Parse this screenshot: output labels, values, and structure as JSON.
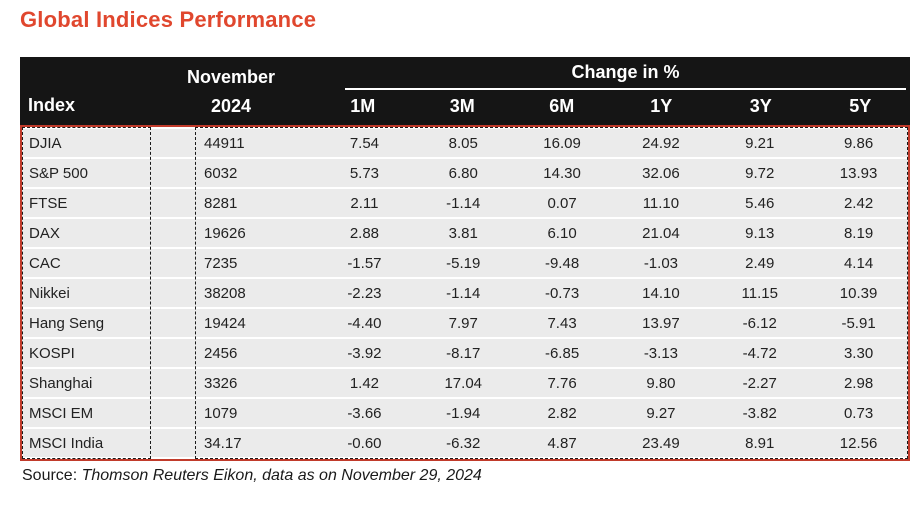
{
  "title": "Global Indices Performance",
  "header": {
    "index_label": "Index",
    "nov_label_line1": "November",
    "nov_label_line2": "2024",
    "group_label": "Change in %",
    "periods": [
      "1M",
      "3M",
      "6M",
      "1Y",
      "3Y",
      "5Y"
    ]
  },
  "chart_data": {
    "type": "table",
    "title": "Global Indices Performance",
    "columns": [
      "Index",
      "November 2024",
      "1M",
      "3M",
      "6M",
      "1Y",
      "3Y",
      "5Y"
    ],
    "group_header": "Change in %",
    "rows": [
      {
        "index": "DJIA",
        "november_2024": "44911",
        "changes": [
          "7.54",
          "8.05",
          "16.09",
          "24.92",
          "9.21",
          "9.86"
        ]
      },
      {
        "index": "S&P 500",
        "november_2024": "6032",
        "changes": [
          "5.73",
          "6.80",
          "14.30",
          "32.06",
          "9.72",
          "13.93"
        ]
      },
      {
        "index": "FTSE",
        "november_2024": "8281",
        "changes": [
          "2.11",
          "-1.14",
          "0.07",
          "11.10",
          "5.46",
          "2.42"
        ]
      },
      {
        "index": "DAX",
        "november_2024": "19626",
        "changes": [
          "2.88",
          "3.81",
          "6.10",
          "21.04",
          "9.13",
          "8.19"
        ]
      },
      {
        "index": "CAC",
        "november_2024": "7235",
        "changes": [
          "-1.57",
          "-5.19",
          "-9.48",
          "-1.03",
          "2.49",
          "4.14"
        ]
      },
      {
        "index": "Nikkei",
        "november_2024": "38208",
        "changes": [
          "-2.23",
          "-1.14",
          "-0.73",
          "14.10",
          "11.15",
          "10.39"
        ]
      },
      {
        "index": "Hang Seng",
        "november_2024": "19424",
        "changes": [
          "-4.40",
          "7.97",
          "7.43",
          "13.97",
          "-6.12",
          "-5.91"
        ]
      },
      {
        "index": "KOSPI",
        "november_2024": "2456",
        "changes": [
          "-3.92",
          "-8.17",
          "-6.85",
          "-3.13",
          "-4.72",
          "3.30"
        ]
      },
      {
        "index": "Shanghai",
        "november_2024": "3326",
        "changes": [
          "1.42",
          "17.04",
          "7.76",
          "9.80",
          "-2.27",
          "2.98"
        ]
      },
      {
        "index": "MSCI EM",
        "november_2024": "1079",
        "changes": [
          "-3.66",
          "-1.94",
          "2.82",
          "9.27",
          "-3.82",
          "0.73"
        ]
      },
      {
        "index": "MSCI India",
        "november_2024": "34.17",
        "changes": [
          "-0.60",
          "-6.32",
          "4.87",
          "23.49",
          "8.91",
          "12.56"
        ]
      }
    ],
    "source": "Source: Thomson Reuters Eikon, data as on November 29, 2024"
  },
  "source": {
    "prefix": "Source: ",
    "text": "Thomson Reuters Eikon, data as on November 29, 2024"
  },
  "colors": {
    "title_text": "#E0472E",
    "header_bg": "#151515",
    "header_text": "#FFFFFF",
    "row_bg": "#EBEBEB",
    "selection_border": "#C13B2B",
    "dash_border": "#1A1A1A"
  }
}
